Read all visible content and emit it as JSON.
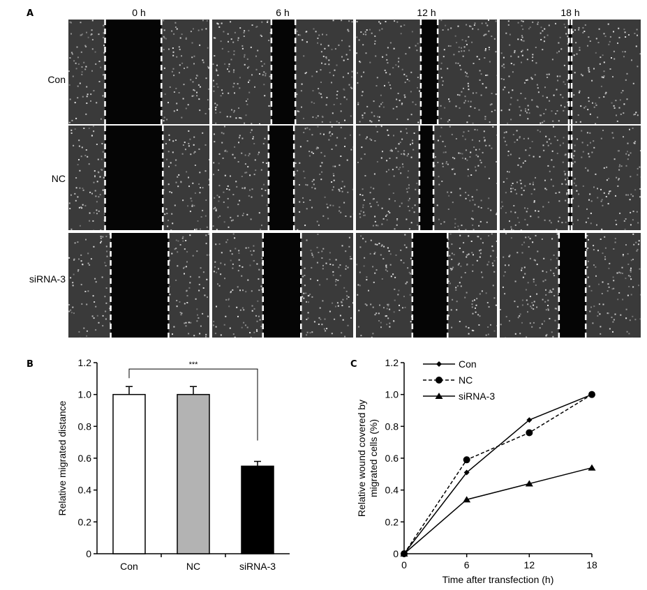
{
  "panel_labels": {
    "a": "A",
    "b": "B",
    "c": "C"
  },
  "panel_a": {
    "time_labels": [
      "0 h",
      "6 h",
      "12 h",
      "18 h"
    ],
    "group_labels": [
      "Con",
      "NC",
      "siRNA-3"
    ],
    "images": [
      [
        {
          "gap_left": 0.26,
          "gap_right": 0.66
        },
        {
          "gap_left": 0.42,
          "gap_right": 0.59
        },
        {
          "gap_left": 0.46,
          "gap_right": 0.58
        },
        {
          "gap_left": 0.49,
          "gap_right": 0.51
        }
      ],
      [
        {
          "gap_left": 0.26,
          "gap_right": 0.67
        },
        {
          "gap_left": 0.4,
          "gap_right": 0.58
        },
        {
          "gap_left": 0.45,
          "gap_right": 0.55
        },
        {
          "gap_left": 0.49,
          "gap_right": 0.51
        }
      ],
      [
        {
          "gap_left": 0.3,
          "gap_right": 0.71
        },
        {
          "gap_left": 0.36,
          "gap_right": 0.63
        },
        {
          "gap_left": 0.4,
          "gap_right": 0.65
        },
        {
          "gap_left": 0.42,
          "gap_right": 0.61
        }
      ]
    ]
  },
  "chart_data": [
    {
      "type": "bar",
      "categories": [
        "Con",
        "NC",
        "siRNA-3"
      ],
      "values": [
        1.0,
        1.0,
        0.55
      ],
      "errors": [
        0.05,
        0.05,
        0.03
      ],
      "bar_fills": [
        "#ffffff",
        "#b3b3b3",
        "#000000"
      ],
      "ylabel": "Relative migrated distance",
      "xlabel": "",
      "ylim": [
        0,
        1.2
      ],
      "yticks": [
        "0",
        "0.2",
        "0.4",
        "0.6",
        "0.8",
        "1.0",
        "1.2"
      ],
      "annotation": {
        "text": "***",
        "from": "Con",
        "to": "siRNA-3"
      }
    },
    {
      "type": "line",
      "x": [
        0,
        6,
        12,
        18
      ],
      "xticks": [
        "0",
        "6",
        "12",
        "18"
      ],
      "series": [
        {
          "name": "Con",
          "values": [
            0,
            0.51,
            0.84,
            1.0
          ],
          "marker": "diamond",
          "dash": "solid"
        },
        {
          "name": "NC",
          "values": [
            0,
            0.59,
            0.76,
            1.0
          ],
          "marker": "circle",
          "dash": "dashed"
        },
        {
          "name": "siRNA-3",
          "values": [
            0,
            0.34,
            0.44,
            0.54
          ],
          "marker": "triangle",
          "dash": "solid"
        }
      ],
      "xlabel": "Time after transfection (h)",
      "ylabel_lines": [
        "Relative wound covered by",
        "migrated cells (%)"
      ],
      "ylim": [
        0,
        1.2
      ],
      "yticks": [
        "0",
        "0.2",
        "0.4",
        "0.6",
        "0.8",
        "1.0",
        "1.2"
      ],
      "legend_position": "top-left"
    }
  ]
}
